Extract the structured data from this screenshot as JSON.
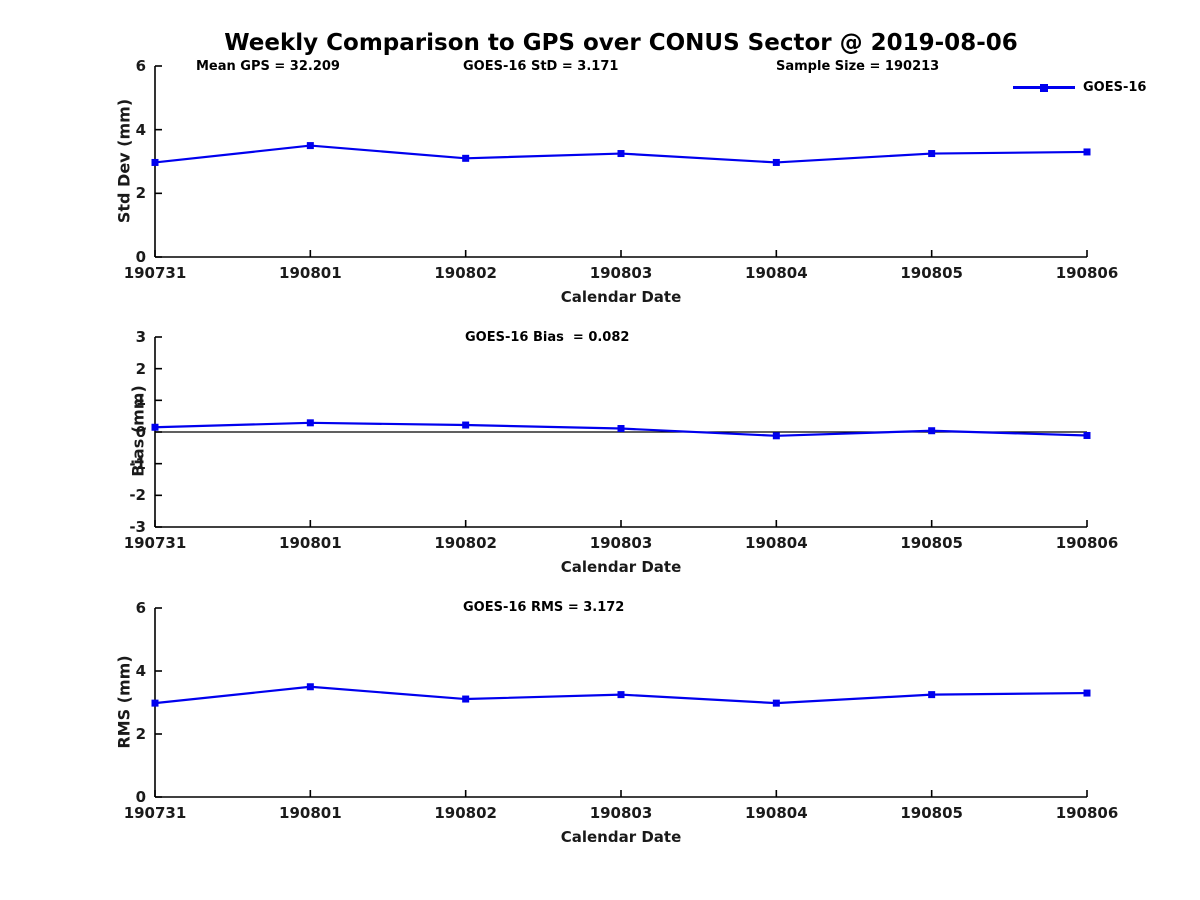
{
  "figure": {
    "title": "Weekly Comparison to GPS over CONUS Sector @ 2019-08-06",
    "legend": {
      "label": "GOES-16",
      "marker": "square-marker-icon",
      "color": "#0000EE"
    },
    "axis_color": "#000000",
    "background_color": "#ffffff"
  },
  "chart_data": [
    {
      "type": "line",
      "annotations": [
        "Mean GPS = 32.209",
        "GOES-16 StD = 3.171",
        "Sample Size = 190213"
      ],
      "categories": [
        "190731",
        "190801",
        "190802",
        "190803",
        "190804",
        "190805",
        "190806"
      ],
      "series": [
        {
          "name": "GOES-16",
          "values": [
            2.97,
            3.5,
            3.1,
            3.25,
            2.97,
            3.25,
            3.3
          ]
        }
      ],
      "xlabel": "Calendar Date",
      "ylabel": "Std Dev (mm)",
      "ylim": [
        0,
        6
      ],
      "yticks": [
        0,
        2,
        4,
        6
      ],
      "grid": false,
      "zero_line": false,
      "legend_position": "top-right"
    },
    {
      "type": "line",
      "annotations": [
        "GOES-16 Bias  = 0.082"
      ],
      "categories": [
        "190731",
        "190801",
        "190802",
        "190803",
        "190804",
        "190805",
        "190806"
      ],
      "series": [
        {
          "name": "GOES-16",
          "values": [
            0.15,
            0.29,
            0.22,
            0.11,
            -0.12,
            0.04,
            -0.11
          ]
        }
      ],
      "xlabel": "Calendar Date",
      "ylabel": "Bias (mm)",
      "ylim": [
        -3,
        3
      ],
      "yticks": [
        -3,
        -2,
        -1,
        0,
        1,
        2,
        3
      ],
      "grid": false,
      "zero_line": true,
      "legend_position": "none"
    },
    {
      "type": "line",
      "annotations": [
        "GOES-16 RMS = 3.172"
      ],
      "categories": [
        "190731",
        "190801",
        "190802",
        "190803",
        "190804",
        "190805",
        "190806"
      ],
      "series": [
        {
          "name": "GOES-16",
          "values": [
            2.98,
            3.5,
            3.11,
            3.25,
            2.98,
            3.25,
            3.3
          ]
        }
      ],
      "xlabel": "Calendar Date",
      "ylabel": "RMS (mm)",
      "ylim": [
        0,
        6
      ],
      "yticks": [
        0,
        2,
        4,
        6
      ],
      "grid": false,
      "zero_line": false,
      "legend_position": "none"
    }
  ]
}
